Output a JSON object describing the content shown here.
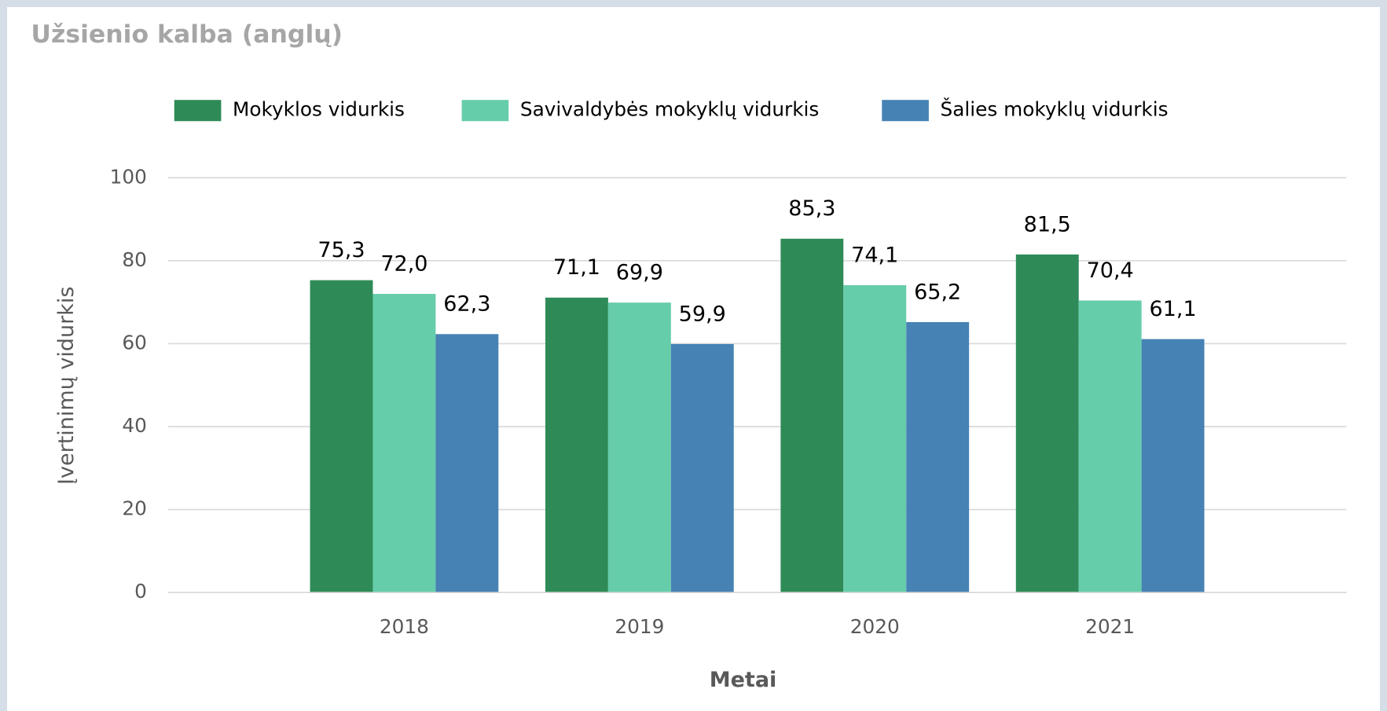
{
  "chart_data": {
    "type": "bar",
    "title": "Užsienio kalba (anglų)",
    "xlabel": "Metai",
    "ylabel": "Įvertinimų vidurkis",
    "categories": [
      "2018",
      "2019",
      "2020",
      "2021"
    ],
    "series": [
      {
        "name": "Mokyklos vidurkis",
        "color": "#2e8b57",
        "values": [
          75.3,
          71.1,
          85.3,
          81.5
        ],
        "value_labels": [
          "75,3",
          "71,1",
          "85,3",
          "81,5"
        ]
      },
      {
        "name": "Savivaldybės mokyklų vidurkis",
        "color": "#66cdaa",
        "values": [
          72.0,
          69.9,
          74.1,
          70.4
        ],
        "value_labels": [
          "72,0",
          "69,9",
          "74,1",
          "70,4"
        ]
      },
      {
        "name": "Šalies mokyklų vidurkis",
        "color": "#4682b4",
        "values": [
          62.3,
          59.9,
          65.2,
          61.1
        ],
        "value_labels": [
          "62,3",
          "59,9",
          "65,2",
          "61,1"
        ]
      }
    ],
    "ylim": [
      0,
      100
    ],
    "yticks": [
      0,
      20,
      40,
      60,
      80,
      100
    ],
    "grid": true,
    "legend": "top"
  }
}
